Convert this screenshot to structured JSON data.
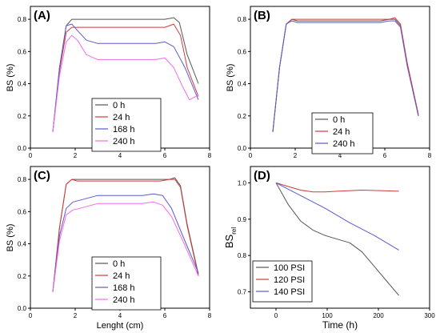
{
  "colors": {
    "0h": "#555555",
    "24h": "#d23a3a",
    "168h": "#5a5acd",
    "240h": "#ee6eee",
    "100psi": "#555555",
    "120psi": "#d23a3a",
    "140psi": "#5a5acd"
  },
  "chart_data": [
    {
      "panel": "(A)",
      "type": "line",
      "xlim": [
        0,
        8
      ],
      "ylim": [
        0.0,
        0.88
      ],
      "xticks": [
        "0",
        "2",
        "4",
        "6",
        "8"
      ],
      "yticks": [
        "0.0",
        "0.2",
        "0.4",
        "0.6",
        "0.8"
      ],
      "xlabel": "",
      "ylabel": "BS (%)",
      "legend": "bottom-center",
      "series": [
        {
          "name": "0 h",
          "color": "0h",
          "x": [
            1.0,
            1.3,
            1.6,
            1.85,
            2.1,
            3,
            4,
            5,
            5.6,
            6.0,
            6.4,
            6.65,
            7.0,
            7.5
          ],
          "y": [
            0.1,
            0.5,
            0.76,
            0.8,
            0.8,
            0.8,
            0.8,
            0.8,
            0.8,
            0.8,
            0.81,
            0.78,
            0.58,
            0.4
          ]
        },
        {
          "name": "24 h",
          "color": "24h",
          "x": [
            1.0,
            1.3,
            1.6,
            1.85,
            2.1,
            3,
            4,
            5,
            5.6,
            6.0,
            6.4,
            6.7,
            7.0,
            7.5
          ],
          "y": [
            0.1,
            0.48,
            0.72,
            0.75,
            0.75,
            0.75,
            0.75,
            0.75,
            0.75,
            0.75,
            0.77,
            0.7,
            0.5,
            0.32
          ]
        },
        {
          "name": "168 h",
          "color": "168h",
          "x": [
            1.0,
            1.3,
            1.6,
            1.85,
            2.1,
            2.5,
            3,
            4,
            5,
            5.6,
            6.0,
            6.4,
            6.9,
            7.5
          ],
          "y": [
            0.1,
            0.5,
            0.76,
            0.77,
            0.73,
            0.67,
            0.65,
            0.65,
            0.65,
            0.65,
            0.66,
            0.63,
            0.5,
            0.3
          ]
        },
        {
          "name": "240 h",
          "color": "240h",
          "x": [
            1.0,
            1.3,
            1.6,
            1.85,
            2.1,
            2.5,
            3,
            4,
            5,
            5.6,
            6.0,
            6.4,
            6.8,
            7.1,
            7.5
          ],
          "y": [
            0.1,
            0.45,
            0.66,
            0.7,
            0.67,
            0.58,
            0.55,
            0.55,
            0.55,
            0.55,
            0.56,
            0.5,
            0.38,
            0.3,
            0.33
          ]
        }
      ]
    },
    {
      "panel": "(B)",
      "type": "line",
      "xlim": [
        0,
        8
      ],
      "ylim": [
        0.0,
        0.88
      ],
      "xticks": [
        "0",
        "2",
        "4",
        "6",
        "8"
      ],
      "yticks": [
        "0.0",
        "0.2",
        "0.4",
        "0.6",
        "0.8"
      ],
      "xlabel": "",
      "ylabel": "BS (%)",
      "legend": "bottom-center",
      "series": [
        {
          "name": "0 h",
          "color": "0h",
          "x": [
            1.0,
            1.3,
            1.6,
            1.85,
            2.1,
            3,
            4,
            5,
            5.8,
            6.2,
            6.45,
            6.7,
            7.0,
            7.5
          ],
          "y": [
            0.1,
            0.5,
            0.77,
            0.8,
            0.79,
            0.79,
            0.79,
            0.79,
            0.79,
            0.8,
            0.8,
            0.76,
            0.52,
            0.2
          ]
        },
        {
          "name": "24 h",
          "color": "24h",
          "x": [
            1.0,
            1.3,
            1.6,
            1.85,
            2.1,
            3,
            4,
            5,
            5.8,
            6.2,
            6.45,
            6.7,
            7.0,
            7.5
          ],
          "y": [
            0.1,
            0.5,
            0.77,
            0.8,
            0.8,
            0.8,
            0.8,
            0.8,
            0.8,
            0.8,
            0.81,
            0.77,
            0.53,
            0.21
          ]
        },
        {
          "name": "240 h",
          "color": "168h",
          "x": [
            1.0,
            1.3,
            1.6,
            1.85,
            2.1,
            3,
            4,
            5,
            5.8,
            6.2,
            6.45,
            6.7,
            7.0,
            7.5
          ],
          "y": [
            0.1,
            0.5,
            0.77,
            0.79,
            0.78,
            0.78,
            0.78,
            0.78,
            0.78,
            0.79,
            0.79,
            0.75,
            0.51,
            0.2
          ]
        }
      ]
    },
    {
      "panel": "(C)",
      "type": "line",
      "xlim": [
        0,
        8
      ],
      "ylim": [
        0.0,
        0.88
      ],
      "xticks": [
        "0",
        "2",
        "4",
        "6",
        "8"
      ],
      "yticks": [
        "0.0",
        "0.2",
        "0.4",
        "0.6",
        "0.8"
      ],
      "xlabel": "Lenght (cm)",
      "ylabel": "BS (%)",
      "legend": "bottom-center",
      "series": [
        {
          "name": "0 h",
          "color": "0h",
          "x": [
            1.0,
            1.3,
            1.6,
            1.85,
            2.1,
            3,
            4,
            5,
            5.8,
            6.2,
            6.45,
            6.7,
            7.0,
            7.5
          ],
          "y": [
            0.1,
            0.5,
            0.77,
            0.8,
            0.8,
            0.8,
            0.8,
            0.8,
            0.8,
            0.8,
            0.81,
            0.76,
            0.52,
            0.21
          ]
        },
        {
          "name": "24 h",
          "color": "24h",
          "x": [
            1.0,
            1.3,
            1.6,
            1.85,
            2.1,
            3,
            4,
            5,
            5.8,
            6.2,
            6.45,
            6.7,
            7.0,
            7.5
          ],
          "y": [
            0.1,
            0.5,
            0.77,
            0.8,
            0.79,
            0.79,
            0.79,
            0.79,
            0.79,
            0.8,
            0.8,
            0.75,
            0.51,
            0.2
          ]
        },
        {
          "name": "168 h",
          "color": "168h",
          "x": [
            1.0,
            1.3,
            1.6,
            1.9,
            2.2,
            3,
            4,
            5,
            5.5,
            5.9,
            6.3,
            6.8,
            7.5
          ],
          "y": [
            0.1,
            0.45,
            0.62,
            0.66,
            0.67,
            0.7,
            0.7,
            0.7,
            0.71,
            0.7,
            0.62,
            0.45,
            0.22
          ]
        },
        {
          "name": "240 h",
          "color": "240h",
          "x": [
            1.0,
            1.3,
            1.6,
            1.9,
            2.2,
            3,
            4,
            5,
            5.5,
            5.9,
            6.3,
            6.8,
            7.5
          ],
          "y": [
            0.1,
            0.42,
            0.58,
            0.61,
            0.62,
            0.65,
            0.65,
            0.65,
            0.66,
            0.64,
            0.57,
            0.42,
            0.2
          ]
        }
      ]
    },
    {
      "panel": "(D)",
      "type": "line",
      "xlim": [
        -50,
        300
      ],
      "ylim": [
        0.655,
        1.045
      ],
      "xticks": [
        "0",
        "100",
        "200",
        "300"
      ],
      "yticks": [
        "0.7",
        "0.8",
        "0.9",
        "1.0"
      ],
      "xlabel": "Time (h)",
      "ylabel": "BS_rel",
      "legend": "bottom-left",
      "series": [
        {
          "name": "100 PSI",
          "color": "100psi",
          "x": [
            0,
            24,
            48,
            72,
            96,
            120,
            144,
            168,
            192,
            216,
            240
          ],
          "y": [
            1.0,
            0.94,
            0.895,
            0.87,
            0.855,
            0.845,
            0.835,
            0.81,
            0.77,
            0.73,
            0.69
          ]
        },
        {
          "name": "120 PSI",
          "color": "120psi",
          "x": [
            0,
            24,
            48,
            72,
            96,
            120,
            168,
            216,
            240
          ],
          "y": [
            1.0,
            0.99,
            0.98,
            0.975,
            0.975,
            0.977,
            0.98,
            0.978,
            0.977
          ]
        },
        {
          "name": "140 PSI",
          "color": "140psi",
          "x": [
            0,
            48,
            96,
            144,
            192,
            240
          ],
          "y": [
            1.0,
            0.965,
            0.93,
            0.89,
            0.855,
            0.815
          ]
        }
      ]
    }
  ]
}
